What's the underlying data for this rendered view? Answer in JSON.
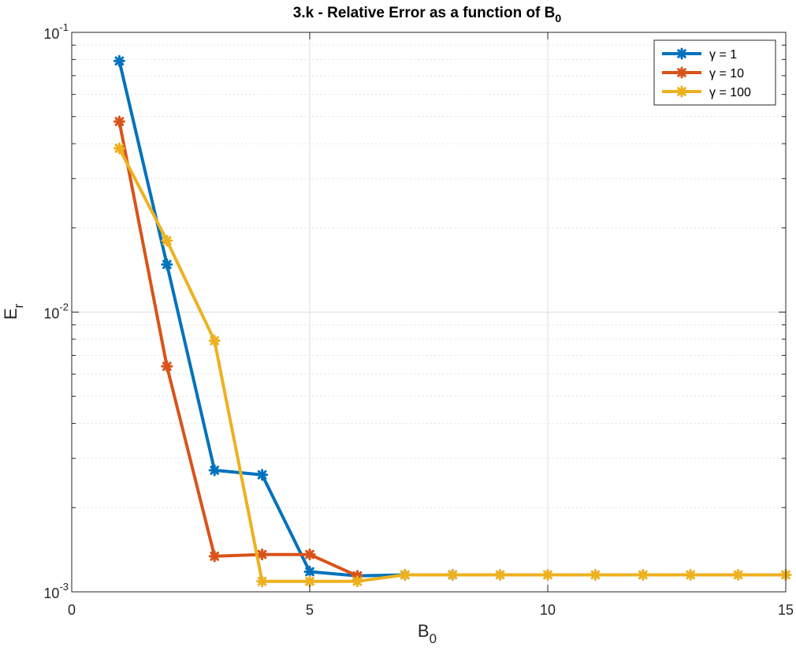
{
  "chart_data": {
    "type": "line",
    "title": "3.k - Relative Error as a function of B",
    "title_sub": "0",
    "xlabel": "B",
    "xlabel_sub": "0",
    "ylabel": "E",
    "ylabel_sub": "r",
    "xlim": [
      0,
      15
    ],
    "ylim": [
      0.001,
      0.1
    ],
    "yscale": "log",
    "grid": true,
    "legend_position": "top-right",
    "x_ticks": [
      0,
      5,
      10,
      15
    ],
    "x_tick_labels": [
      "0",
      "5",
      "10",
      "15"
    ],
    "y_ticks": [
      0.001,
      0.01,
      0.1
    ],
    "y_tick_labels": [
      {
        "base": "10",
        "exp": "-3"
      },
      {
        "base": "10",
        "exp": "-2"
      },
      {
        "base": "10",
        "exp": "-1"
      }
    ],
    "series": [
      {
        "name": "γ = 1",
        "color": "#0072BD",
        "x": [
          1,
          2,
          3,
          4,
          5,
          6,
          7,
          8
        ],
        "y": [
          0.079,
          0.0148,
          0.00272,
          0.00262,
          0.00118,
          0.00114,
          0.00115,
          0.00115
        ]
      },
      {
        "name": "γ = 10",
        "color": "#D95319",
        "x": [
          1,
          2,
          3,
          4,
          5,
          6
        ],
        "y": [
          0.048,
          0.0064,
          0.00134,
          0.00136,
          0.00136,
          0.00114
        ]
      },
      {
        "name": "γ = 100",
        "color": "#EDB120",
        "x": [
          1,
          2,
          3,
          4,
          5,
          6,
          7,
          8,
          9,
          10,
          11,
          12,
          13,
          14,
          15
        ],
        "y": [
          0.0385,
          0.018,
          0.0079,
          0.00109,
          0.00109,
          0.00109,
          0.00115,
          0.00115,
          0.00115,
          0.00115,
          0.00115,
          0.00115,
          0.00115,
          0.00115,
          0.00115
        ]
      }
    ]
  }
}
